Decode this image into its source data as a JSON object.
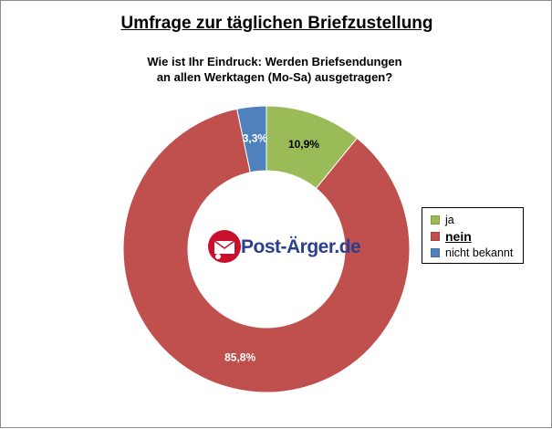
{
  "chart_data": {
    "type": "pie",
    "title": "Umfrage zur täglichen Briefzustellung",
    "subtitle_line1": "Wie ist Ihr Eindruck: Werden Briefsendungen",
    "subtitle_line2": "an allen Werktagen (Mo-Sa) ausgetragen?",
    "categories": [
      "ja",
      "nein",
      "nicht bekannt"
    ],
    "values": [
      10.9,
      85.8,
      3.3
    ],
    "data_labels": [
      "10,9%",
      "85,8%",
      "3,3%"
    ],
    "colors": [
      "#9bbb59",
      "#c0504d",
      "#4f81bd"
    ],
    "legend_placement": "right"
  },
  "logo": {
    "text": "Post-Ärger.de"
  }
}
